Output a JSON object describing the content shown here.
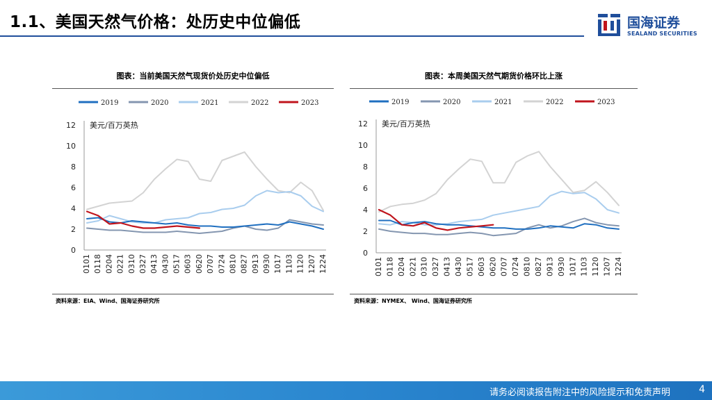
{
  "header": {
    "title": "1.1、美国天然气价格：处历史中位偏低"
  },
  "logo": {
    "cn": "国海证券",
    "en": "SEALAND SECURITIES"
  },
  "colors": {
    "brand": "#1f4e9b"
  },
  "footer": {
    "disclaimer": "请务必阅读报告附注中的风险提示和免责声明",
    "page": "4"
  },
  "chart_data": [
    {
      "type": "line",
      "title": "图表：当前美国天然气现货价处历史中位偏低",
      "source": "资料来源：EIA、Wind、国海证券研究所",
      "ylabel": "美元/百万英热",
      "ylim": [
        0,
        12
      ],
      "yticks": [
        0,
        2,
        4,
        6,
        8,
        10,
        12
      ],
      "categories": [
        "0101",
        "0118",
        "0204",
        "0221",
        "0310",
        "0327",
        "0413",
        "0430",
        "0517",
        "0603",
        "0620",
        "0707",
        "0724",
        "0810",
        "0827",
        "0913",
        "0930",
        "1017",
        "1103",
        "1120",
        "1207",
        "1224"
      ],
      "series": [
        {
          "name": "2019",
          "color": "#1f6fc0",
          "values": [
            3.0,
            3.1,
            2.7,
            2.6,
            2.8,
            2.7,
            2.6,
            2.5,
            2.6,
            2.4,
            2.3,
            2.3,
            2.2,
            2.2,
            2.3,
            2.4,
            2.5,
            2.4,
            2.7,
            2.5,
            2.3,
            2.0
          ]
        },
        {
          "name": "2020",
          "color": "#8496b0",
          "values": [
            2.1,
            2.0,
            1.9,
            1.9,
            1.8,
            1.7,
            1.7,
            1.7,
            1.8,
            1.7,
            1.6,
            1.7,
            1.8,
            2.1,
            2.3,
            2.0,
            1.9,
            2.1,
            2.9,
            2.7,
            2.5,
            2.4
          ]
        },
        {
          "name": "2021",
          "color": "#a9cdee",
          "values": [
            2.6,
            2.8,
            3.3,
            3.0,
            2.7,
            2.6,
            2.6,
            2.9,
            3.0,
            3.1,
            3.5,
            3.6,
            3.9,
            4.0,
            4.3,
            5.2,
            5.7,
            5.5,
            5.6,
            5.2,
            4.2,
            3.7
          ]
        },
        {
          "name": "2022",
          "color": "#d3d3d3",
          "values": [
            3.9,
            4.2,
            4.5,
            4.6,
            4.7,
            5.5,
            6.8,
            7.8,
            8.7,
            8.5,
            6.8,
            6.6,
            8.6,
            9.0,
            9.4,
            8.0,
            6.8,
            5.7,
            5.5,
            6.5,
            5.7,
            3.8
          ]
        },
        {
          "name": "2023",
          "color": "#c0141c",
          "values": [
            3.7,
            3.3,
            2.5,
            2.6,
            2.3,
            2.1,
            2.1,
            2.2,
            2.3,
            2.2,
            2.1,
            null,
            null,
            null,
            null,
            null,
            null,
            null,
            null,
            null,
            null,
            null
          ]
        }
      ]
    },
    {
      "type": "line",
      "title": "图表：本周美国天然气期货价格环比上涨",
      "source": "资料来源：NYMEX、 Wind、国海证券研究所",
      "ylabel": "美元/百万英热",
      "ylim": [
        0,
        12
      ],
      "yticks": [
        0,
        2,
        4,
        6,
        8,
        10,
        12
      ],
      "categories": [
        "0101",
        "0118",
        "0204",
        "0221",
        "0310",
        "0327",
        "0413",
        "0430",
        "0517",
        "0603",
        "0620",
        "0707",
        "0724",
        "0810",
        "0827",
        "0913",
        "0930",
        "1017",
        "1103",
        "1120",
        "1207",
        "1224"
      ],
      "series": [
        {
          "name": "2019",
          "color": "#1f6fc0",
          "values": [
            3.0,
            3.0,
            2.6,
            2.8,
            2.9,
            2.7,
            2.6,
            2.6,
            2.5,
            2.4,
            2.3,
            2.3,
            2.2,
            2.2,
            2.3,
            2.5,
            2.4,
            2.3,
            2.7,
            2.6,
            2.3,
            2.2
          ]
        },
        {
          "name": "2020",
          "color": "#8496b0",
          "values": [
            2.2,
            2.0,
            1.9,
            1.8,
            1.8,
            1.7,
            1.7,
            1.8,
            1.9,
            1.8,
            1.6,
            1.7,
            1.8,
            2.3,
            2.6,
            2.3,
            2.5,
            2.9,
            3.2,
            2.8,
            2.6,
            2.5
          ]
        },
        {
          "name": "2021",
          "color": "#a9cdee",
          "values": [
            2.7,
            2.6,
            2.9,
            2.8,
            2.6,
            2.6,
            2.7,
            2.9,
            3.0,
            3.1,
            3.5,
            3.7,
            3.9,
            4.1,
            4.3,
            5.3,
            5.7,
            5.5,
            5.6,
            5.0,
            4.0,
            3.7
          ]
        },
        {
          "name": "2022",
          "color": "#d3d3d3",
          "values": [
            3.8,
            4.3,
            4.5,
            4.6,
            4.9,
            5.5,
            6.8,
            7.8,
            8.7,
            8.5,
            6.5,
            6.5,
            8.4,
            9.0,
            9.4,
            8.0,
            6.8,
            5.6,
            5.8,
            6.6,
            5.6,
            4.4
          ]
        },
        {
          "name": "2023",
          "color": "#c0141c",
          "values": [
            4.0,
            3.5,
            2.6,
            2.5,
            2.8,
            2.3,
            2.1,
            2.3,
            2.4,
            2.5,
            2.6,
            null,
            null,
            null,
            null,
            null,
            null,
            null,
            null,
            null,
            null,
            null
          ]
        }
      ]
    }
  ]
}
